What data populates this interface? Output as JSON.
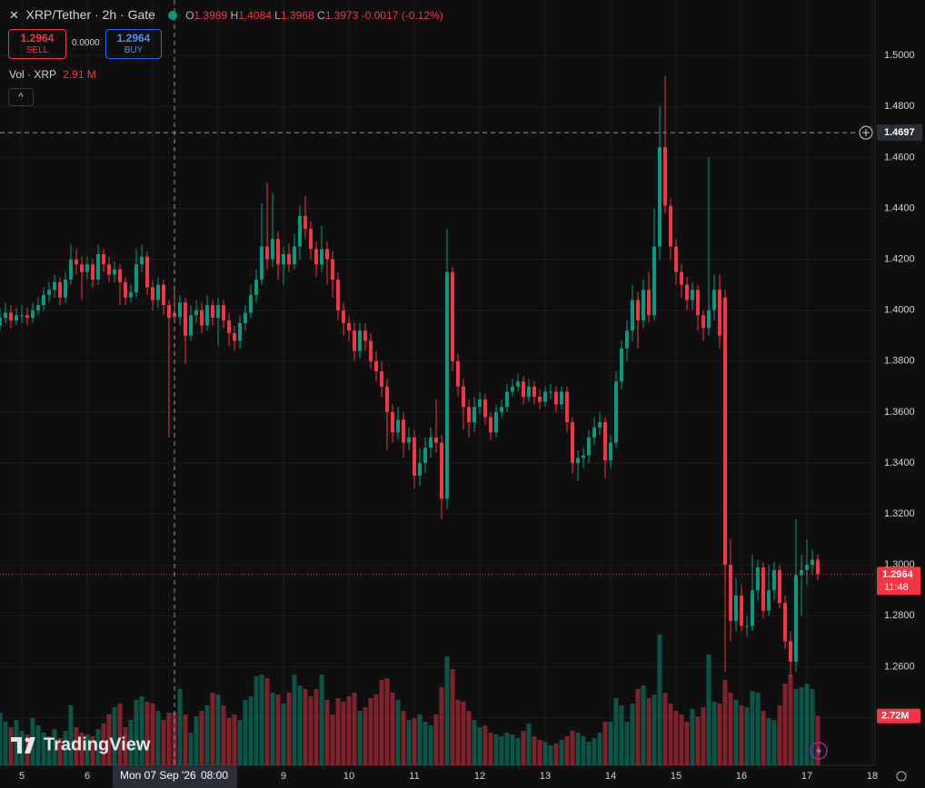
{
  "chart_data": {
    "type": "candlestick",
    "title": "XRP/Tether · 2h · Gate",
    "ohlc_legend": [
      {
        "key": "O",
        "value": "1.3989"
      },
      {
        "key": "H",
        "value": "1.4084"
      },
      {
        "key": "L",
        "value": "1.3968"
      },
      {
        "key": "C",
        "value": "1.3973"
      }
    ],
    "change": "-0.0017 (-0.12%)",
    "trade_buttons": {
      "sell_price": "1.2964",
      "sell": "SELL",
      "spread": "0.0000",
      "buy_price": "1.2964",
      "buy": "BUY"
    },
    "volume_legend": {
      "label": "Vol · XRP",
      "value": "2.91 M"
    },
    "x": [
      -8,
      -6,
      -4,
      -2,
      0,
      2,
      4,
      6,
      8,
      10,
      12,
      14,
      16,
      18,
      20,
      22,
      24,
      26,
      28,
      30,
      32,
      34,
      36,
      38,
      40,
      42,
      44,
      46,
      48,
      50,
      52,
      54,
      56,
      58,
      60,
      62,
      64,
      66,
      68,
      70,
      72,
      74,
      76,
      78,
      80,
      82,
      84,
      86,
      88,
      90,
      92,
      94,
      96,
      98,
      100,
      102,
      104,
      106,
      108,
      110,
      112,
      114,
      116,
      118,
      120,
      122,
      124,
      126,
      128,
      130,
      132,
      134,
      136,
      138,
      140,
      142,
      144,
      146,
      148,
      150,
      152,
      154,
      156,
      158,
      160,
      162,
      164,
      166,
      168,
      170,
      172,
      174,
      176,
      178,
      180,
      182,
      184,
      186,
      188,
      190,
      192,
      194,
      196,
      198,
      200,
      202,
      204,
      206,
      208,
      210,
      212,
      214,
      216,
      218,
      220,
      222,
      224,
      226,
      228,
      230,
      232,
      234,
      236,
      238,
      240,
      242,
      244,
      246,
      248,
      250,
      252,
      254,
      256,
      258,
      260,
      262,
      264,
      266,
      268,
      270,
      272,
      274,
      276,
      278,
      280,
      282,
      284,
      286,
      288,
      290,
      292
    ],
    "open": [
      1.394,
      1.397,
      1.399,
      1.396,
      1.398,
      1.398,
      1.397,
      1.4,
      1.402,
      1.406,
      1.408,
      1.411,
      1.405,
      1.412,
      1.42,
      1.418,
      1.415,
      1.418,
      1.412,
      1.422,
      1.418,
      1.414,
      1.416,
      1.411,
      1.405,
      1.407,
      1.418,
      1.421,
      1.409,
      1.404,
      1.41,
      1.402,
      1.3989,
      1.3973,
      1.403,
      1.39,
      1.398,
      1.4,
      1.394,
      1.402,
      1.397,
      1.402,
      1.396,
      1.391,
      1.388,
      1.395,
      1.399,
      1.406,
      1.412,
      1.425,
      1.42,
      1.428,
      1.418,
      1.422,
      1.418,
      1.425,
      1.437,
      1.432,
      1.424,
      1.418,
      1.424,
      1.42,
      1.412,
      1.4,
      1.395,
      1.392,
      1.384,
      1.392,
      1.388,
      1.38,
      1.376,
      1.37,
      1.36,
      1.352,
      1.357,
      1.348,
      1.35,
      1.335,
      1.34,
      1.346,
      1.35,
      1.348,
      1.326,
      1.415,
      1.38,
      1.37,
      1.362,
      1.356,
      1.362,
      1.365,
      1.358,
      1.352,
      1.36,
      1.362,
      1.368,
      1.37,
      1.372,
      1.366,
      1.37,
      1.366,
      1.364,
      1.368,
      1.368,
      1.363,
      1.368,
      1.356,
      1.34,
      1.342,
      1.343,
      1.35,
      1.354,
      1.356,
      1.341,
      1.348,
      1.372,
      1.385,
      1.392,
      1.404,
      1.396,
      1.408,
      1.398,
      1.425,
      1.464,
      1.441,
      1.425,
      1.415,
      1.41,
      1.404,
      1.408,
      1.398,
      1.393,
      1.4,
      1.408,
      1.405,
      1.3,
      1.278,
      1.288,
      1.276,
      1.276,
      1.29,
      1.299,
      1.282,
      1.29,
      1.298,
      1.285,
      1.27,
      1.262,
      1.296,
      1.298,
      1.3,
      1.302
    ],
    "high": [
      1.401,
      1.403,
      1.402,
      1.401,
      1.402,
      1.401,
      1.403,
      1.405,
      1.409,
      1.411,
      1.414,
      1.413,
      1.415,
      1.426,
      1.424,
      1.421,
      1.421,
      1.42,
      1.426,
      1.424,
      1.421,
      1.419,
      1.418,
      1.413,
      1.41,
      1.424,
      1.426,
      1.423,
      1.412,
      1.413,
      1.412,
      1.404,
      1.4084,
      1.406,
      1.405,
      1.402,
      1.404,
      1.403,
      1.406,
      1.404,
      1.405,
      1.404,
      1.399,
      1.394,
      1.398,
      1.402,
      1.41,
      1.416,
      1.442,
      1.45,
      1.446,
      1.431,
      1.425,
      1.426,
      1.43,
      1.441,
      1.445,
      1.435,
      1.427,
      1.433,
      1.427,
      1.423,
      1.415,
      1.403,
      1.398,
      1.395,
      1.395,
      1.395,
      1.391,
      1.384,
      1.38,
      1.373,
      1.363,
      1.362,
      1.36,
      1.354,
      1.353,
      1.346,
      1.35,
      1.354,
      1.365,
      1.351,
      1.432,
      1.417,
      1.383,
      1.373,
      1.365,
      1.366,
      1.368,
      1.367,
      1.36,
      1.363,
      1.365,
      1.371,
      1.373,
      1.375,
      1.374,
      1.373,
      1.372,
      1.369,
      1.37,
      1.371,
      1.37,
      1.37,
      1.37,
      1.358,
      1.345,
      1.346,
      1.353,
      1.358,
      1.36,
      1.358,
      1.351,
      1.376,
      1.388,
      1.396,
      1.41,
      1.407,
      1.412,
      1.415,
      1.44,
      1.48,
      1.492,
      1.444,
      1.428,
      1.418,
      1.413,
      1.411,
      1.41,
      1.4,
      1.46,
      1.414,
      1.414,
      1.408,
      1.31,
      1.295,
      1.292,
      1.28,
      1.304,
      1.302,
      1.301,
      1.3,
      1.301,
      1.3,
      1.288,
      1.274,
      1.318,
      1.304,
      1.31,
      1.306,
      1.304
    ],
    "low": [
      1.392,
      1.395,
      1.393,
      1.394,
      1.395,
      1.394,
      1.395,
      1.398,
      1.4,
      1.403,
      1.405,
      1.402,
      1.403,
      1.41,
      1.414,
      1.404,
      1.412,
      1.409,
      1.41,
      1.415,
      1.411,
      1.411,
      1.402,
      1.402,
      1.403,
      1.405,
      1.415,
      1.406,
      1.4,
      1.401,
      1.398,
      1.35,
      1.3968,
      1.394,
      1.379,
      1.388,
      1.395,
      1.391,
      1.392,
      1.394,
      1.386,
      1.393,
      1.386,
      1.384,
      1.385,
      1.392,
      1.397,
      1.403,
      1.41,
      1.416,
      1.417,
      1.412,
      1.41,
      1.415,
      1.416,
      1.42,
      1.428,
      1.42,
      1.413,
      1.415,
      1.41,
      1.405,
      1.396,
      1.39,
      1.388,
      1.38,
      1.381,
      1.384,
      1.377,
      1.372,
      1.366,
      1.345,
      1.348,
      1.349,
      1.342,
      1.345,
      1.33,
      1.331,
      1.336,
      1.342,
      1.344,
      1.318,
      1.322,
      1.376,
      1.366,
      1.353,
      1.35,
      1.352,
      1.359,
      1.355,
      1.349,
      1.35,
      1.358,
      1.36,
      1.366,
      1.368,
      1.363,
      1.364,
      1.363,
      1.361,
      1.362,
      1.365,
      1.36,
      1.361,
      1.352,
      1.336,
      1.333,
      1.338,
      1.34,
      1.347,
      1.351,
      1.334,
      1.338,
      1.346,
      1.369,
      1.38,
      1.388,
      1.385,
      1.393,
      1.395,
      1.396,
      1.42,
      1.438,
      1.42,
      1.41,
      1.405,
      1.4,
      1.4,
      1.392,
      1.388,
      1.39,
      1.396,
      1.385,
      1.258,
      1.27,
      1.274,
      1.274,
      1.272,
      1.274,
      1.286,
      1.279,
      1.28,
      1.286,
      1.283,
      1.267,
      1.256,
      1.258,
      1.28,
      1.292,
      1.296,
      1.294
    ],
    "close": [
      1.397,
      1.399,
      1.396,
      1.398,
      1.398,
      1.397,
      1.4,
      1.402,
      1.406,
      1.408,
      1.411,
      1.405,
      1.412,
      1.42,
      1.418,
      1.415,
      1.418,
      1.412,
      1.422,
      1.418,
      1.414,
      1.416,
      1.411,
      1.405,
      1.407,
      1.418,
      1.421,
      1.409,
      1.404,
      1.41,
      1.402,
      1.397,
      1.3973,
      1.403,
      1.39,
      1.398,
      1.4,
      1.394,
      1.402,
      1.397,
      1.402,
      1.396,
      1.391,
      1.388,
      1.395,
      1.399,
      1.406,
      1.412,
      1.425,
      1.42,
      1.428,
      1.418,
      1.422,
      1.418,
      1.425,
      1.437,
      1.432,
      1.424,
      1.418,
      1.424,
      1.42,
      1.412,
      1.4,
      1.395,
      1.392,
      1.384,
      1.392,
      1.388,
      1.38,
      1.376,
      1.37,
      1.36,
      1.352,
      1.357,
      1.348,
      1.35,
      1.335,
      1.34,
      1.346,
      1.35,
      1.348,
      1.326,
      1.415,
      1.38,
      1.37,
      1.362,
      1.356,
      1.362,
      1.365,
      1.358,
      1.352,
      1.36,
      1.362,
      1.368,
      1.37,
      1.372,
      1.366,
      1.37,
      1.366,
      1.364,
      1.368,
      1.368,
      1.363,
      1.368,
      1.356,
      1.34,
      1.342,
      1.343,
      1.35,
      1.354,
      1.356,
      1.341,
      1.348,
      1.372,
      1.385,
      1.392,
      1.404,
      1.396,
      1.408,
      1.398,
      1.425,
      1.464,
      1.441,
      1.425,
      1.415,
      1.41,
      1.404,
      1.408,
      1.398,
      1.393,
      1.4,
      1.408,
      1.39,
      1.3,
      1.278,
      1.288,
      1.276,
      1.276,
      1.29,
      1.299,
      1.282,
      1.29,
      1.298,
      1.285,
      1.27,
      1.262,
      1.296,
      1.298,
      1.3,
      1.302,
      1.2964
    ],
    "volume": [
      2.9,
      2.4,
      2.1,
      2.5,
      1.9,
      1.7,
      2.6,
      2.2,
      1.8,
      1.6,
      2.0,
      1.5,
      1.9,
      3.3,
      2.1,
      1.8,
      1.7,
      1.6,
      2.0,
      2.3,
      2.8,
      3.2,
      3.4,
      2.1,
      2.5,
      3.6,
      3.8,
      3.5,
      3.4,
      3.0,
      2.5,
      2.9,
      2.91,
      4.2,
      2.8,
      1.8,
      2.7,
      3.0,
      3.3,
      4.0,
      3.9,
      3.3,
      2.6,
      2.8,
      2.5,
      3.6,
      3.8,
      4.9,
      5.0,
      4.8,
      4.0,
      3.9,
      3.4,
      4.0,
      5.0,
      4.4,
      4.2,
      3.8,
      4.2,
      5.0,
      3.6,
      2.8,
      3.7,
      3.5,
      3.8,
      4.0,
      3.0,
      3.2,
      3.7,
      3.9,
      4.7,
      4.8,
      4.0,
      3.6,
      3.0,
      2.5,
      2.6,
      2.8,
      2.4,
      2.2,
      2.8,
      4.3,
      6.0,
      5.3,
      3.6,
      3.5,
      3.0,
      2.5,
      2.1,
      2.2,
      1.8,
      1.7,
      1.6,
      1.8,
      1.7,
      1.5,
      1.9,
      2.3,
      1.6,
      1.4,
      1.3,
      1.1,
      1.2,
      1.4,
      1.6,
      1.9,
      1.8,
      1.6,
      1.3,
      1.5,
      1.8,
      2.4,
      2.4,
      3.7,
      3.3,
      2.4,
      3.4,
      4.2,
      4.4,
      3.7,
      3.9,
      7.2,
      4.0,
      3.4,
      3.0,
      2.8,
      2.4,
      3.1,
      2.7,
      3.2,
      6.1,
      3.5,
      3.4,
      4.7,
      4.0,
      3.6,
      3.3,
      3.2,
      4.1,
      4.0,
      3.0,
      2.6,
      2.5,
      3.3,
      4.5,
      5.0,
      4.2,
      4.3,
      4.5,
      4.2,
      2.72
    ],
    "xlim": [
      -8,
      313
    ],
    "ylim": [
      1.2213,
      1.5218
    ],
    "volume_ylim": [
      0,
      15
    ],
    "xticks": [
      {
        "value": 0,
        "label": "5"
      },
      {
        "value": 24,
        "label": "6"
      },
      {
        "value": 48,
        "label": "7"
      },
      {
        "value": 72,
        "label": "8"
      },
      {
        "value": 96,
        "label": "9"
      },
      {
        "value": 120,
        "label": "10"
      },
      {
        "value": 144,
        "label": "11"
      },
      {
        "value": 168,
        "label": "12"
      },
      {
        "value": 192,
        "label": "13"
      },
      {
        "value": 216,
        "label": "14"
      },
      {
        "value": 240,
        "label": "15"
      },
      {
        "value": 264,
        "label": "16"
      },
      {
        "value": 288,
        "label": "17"
      },
      {
        "value": 312,
        "label": "18"
      }
    ],
    "yticks": [
      {
        "value": 1.24,
        "label": "1.2400"
      },
      {
        "value": 1.26,
        "label": "1.2600"
      },
      {
        "value": 1.28,
        "label": "1.2800"
      },
      {
        "value": 1.3,
        "label": "1.3000"
      },
      {
        "value": 1.32,
        "label": "1.3200"
      },
      {
        "value": 1.34,
        "label": "1.3400"
      },
      {
        "value": 1.36,
        "label": "1.3600"
      },
      {
        "value": 1.38,
        "label": "1.3800"
      },
      {
        "value": 1.4,
        "label": "1.4000"
      },
      {
        "value": 1.42,
        "label": "1.4200"
      },
      {
        "value": 1.44,
        "label": "1.4400"
      },
      {
        "value": 1.46,
        "label": "1.4600"
      },
      {
        "value": 1.48,
        "label": "1.4800"
      },
      {
        "value": 1.5,
        "label": "1.5000"
      }
    ],
    "up_color": "#089981",
    "down_color": "#f23645",
    "grid": true,
    "last_price": 1.2964,
    "countdown": "11:48",
    "crosshair": {
      "price": 1.4697,
      "x": 56,
      "date": "Mon 07 Sep '26",
      "time": "08:00"
    },
    "volume_tag": {
      "value": 2.72,
      "label": "2.72M"
    },
    "watermark": "TradingView"
  }
}
